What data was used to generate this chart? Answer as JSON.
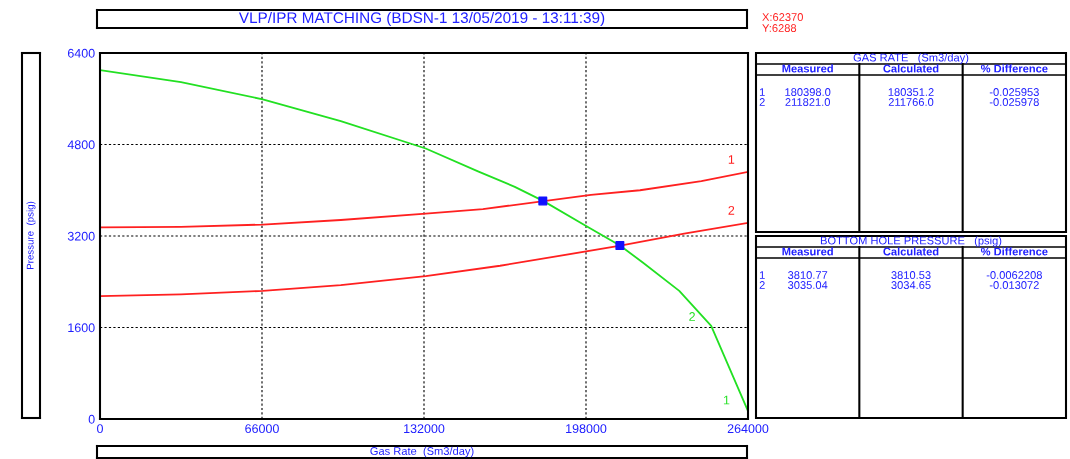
{
  "chart_data": [
    {
      "type": "line",
      "title": "VLP/IPR MATCHING (BDSN-1 13/05/2019 - 13:11:39)",
      "xlabel": "Gas Rate  (Sm3/day)",
      "ylabel": "Pressure  (psig)",
      "xlim": [
        0,
        264000
      ],
      "ylim": [
        0,
        6400
      ],
      "xticks": [
        0,
        66000,
        132000,
        198000,
        264000
      ],
      "yticks": [
        0,
        1600,
        3200,
        4800,
        6400
      ],
      "grid": true,
      "series": [
        {
          "color": "#22e022",
          "x": [
            0,
            33000,
            66300,
            98100,
            132700,
            154000,
            169000,
            180700,
            197000,
            212000,
            221000,
            236000,
            249000,
            264000
          ],
          "values": [
            6100,
            5890,
            5590,
            5210,
            4730,
            4330,
            4060,
            3810,
            3400,
            3030,
            2740,
            2240,
            1630,
            140
          ]
        },
        {
          "name": "1",
          "color": "#ff2020",
          "x": [
            0,
            33000,
            66300,
            98100,
            132700,
            156000,
            200000,
            220000,
            245000,
            264000
          ],
          "values": [
            3350,
            3360,
            3400,
            3480,
            3590,
            3670,
            3920,
            4000,
            4160,
            4320
          ]
        },
        {
          "name": "2",
          "color": "#ff2020",
          "x": [
            0,
            33000,
            66300,
            98100,
            132700,
            163000,
            212000,
            238000,
            264000
          ],
          "values": [
            2150,
            2180,
            2240,
            2340,
            2500,
            2680,
            3030,
            3240,
            3430
          ]
        },
        {
          "type": "scatter",
          "marker": "square",
          "color": "#1010ff",
          "x": [
            180400,
            211800
          ],
          "values": [
            3811,
            3035
          ]
        }
      ],
      "annotations": [
        {
          "text": "2",
          "x": 246600,
          "y": 1700
        },
        {
          "text": "1",
          "x": 260600,
          "y": 240
        },
        "X:62370",
        "Y:6288"
      ]
    },
    {
      "type": "other",
      "title": "GAS RATE   (Sm3/day)",
      "annotations": [
        "Measured",
        "Calculated",
        "% Difference",
        "1",
        "180398.0",
        "180351.2",
        "-0.025953",
        "2",
        "211821.0",
        "211766.0",
        "-0.025978"
      ]
    },
    {
      "type": "other",
      "title": "BOTTOM HOLE PRESSURE   (psig)",
      "annotations": [
        "Measured",
        "Calculated",
        "% Difference",
        "1",
        "3810.77",
        "3810.53",
        "-0.0062208",
        "2",
        "3035.04",
        "3034.65",
        "-0.013072"
      ]
    }
  ]
}
